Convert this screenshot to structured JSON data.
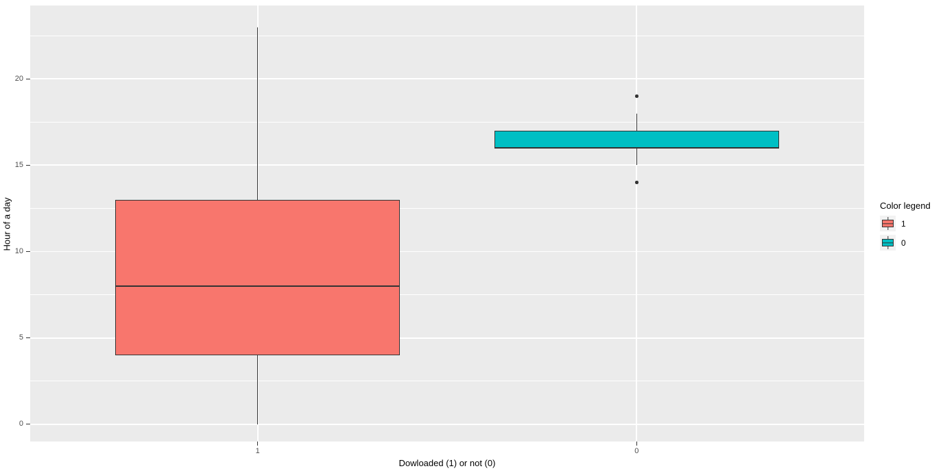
{
  "chart_data": {
    "type": "boxplot",
    "title": "",
    "xlabel": "Dowloaded (1) or not (0)",
    "ylabel": "Hour of a day",
    "categories": [
      "1",
      "0"
    ],
    "series": [
      {
        "category": "1",
        "legend_label": "1",
        "color": "#F8766D",
        "whisker_low": 0,
        "q1": 4,
        "median": 8,
        "q3": 13,
        "whisker_high": 23,
        "outliers": []
      },
      {
        "category": "0",
        "legend_label": "0",
        "color": "#00BFC4",
        "whisker_low": 15,
        "q1": 16,
        "median": 16,
        "q3": 17,
        "whisker_high": 18,
        "outliers": [
          19,
          14
        ]
      }
    ],
    "y_ticks": [
      0,
      5,
      10,
      15,
      20
    ],
    "y_minor_ticks": [
      2.5,
      7.5,
      12.5,
      17.5,
      22.5
    ],
    "ylim": [
      -1.0,
      24.25
    ],
    "grid": true,
    "legend": {
      "title": "Color legend",
      "position": "right"
    },
    "colors": {
      "panel_background": "#EBEBEB",
      "gridline": "#FFFFFF",
      "box_outline": "#333333",
      "tick_label": "#4D4D4D",
      "legend_key_background": "#F2F2F2"
    }
  }
}
